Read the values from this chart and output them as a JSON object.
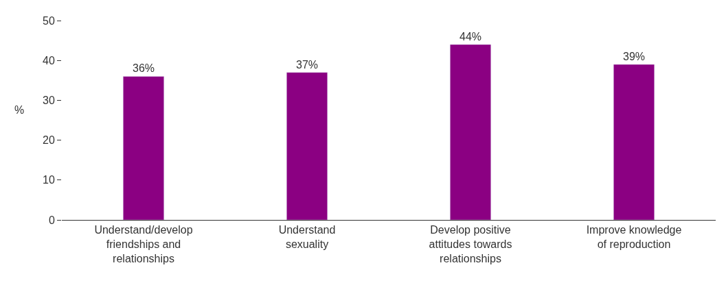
{
  "chart_data": {
    "type": "bar",
    "ylabel": "%",
    "categories": [
      "Understand/develop friendships and relationships",
      "Understand sexuality",
      "Develop positive attitudes towards relationships",
      "Improve knowledge of reproduction"
    ],
    "values": [
      36,
      37,
      44,
      39
    ],
    "value_labels": [
      "36%",
      "37%",
      "44%",
      "39%"
    ],
    "color": "#8b0082",
    "ylim": [
      0,
      50
    ],
    "yticks": [
      0,
      10,
      20,
      30,
      40,
      50
    ]
  }
}
